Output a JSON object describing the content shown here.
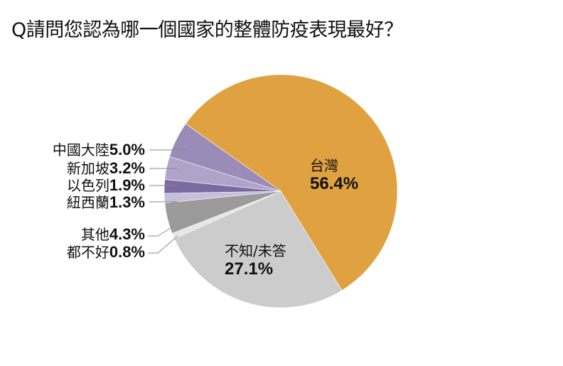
{
  "title": "Q請問您認為哪一個國家的整體防疫表現最好？",
  "chart_data": {
    "type": "pie",
    "title": "Q請問您認為哪一個國家的整體防疫表現最好？",
    "start_angle_deg": -54.7,
    "direction": "clockwise",
    "slices": [
      {
        "label": "台灣",
        "value": 56.4,
        "value_text": "56.4%",
        "color": "#E0A240"
      },
      {
        "label": "不知/未答",
        "value": 27.1,
        "value_text": "27.1%",
        "color": "#CCCCCC"
      },
      {
        "label": "都不好",
        "value": 0.8,
        "value_text": "0.8%",
        "color": "#E6E6E6"
      },
      {
        "label": "其他",
        "value": 4.3,
        "value_text": "4.3%",
        "color": "#9B9B9B"
      },
      {
        "label": "紐西蘭",
        "value": 1.3,
        "value_text": "1.3%",
        "color": "#C6BEDA"
      },
      {
        "label": "以色列",
        "value": 1.9,
        "value_text": "1.9%",
        "color": "#7B6AA0"
      },
      {
        "label": "新加坡",
        "value": 3.2,
        "value_text": "3.2%",
        "color": "#AFA3CA"
      },
      {
        "label": "中國大陸",
        "value": 5.0,
        "value_text": "5.0%",
        "color": "#9A8BB9"
      }
    ],
    "legend": "none (direct labels)"
  }
}
